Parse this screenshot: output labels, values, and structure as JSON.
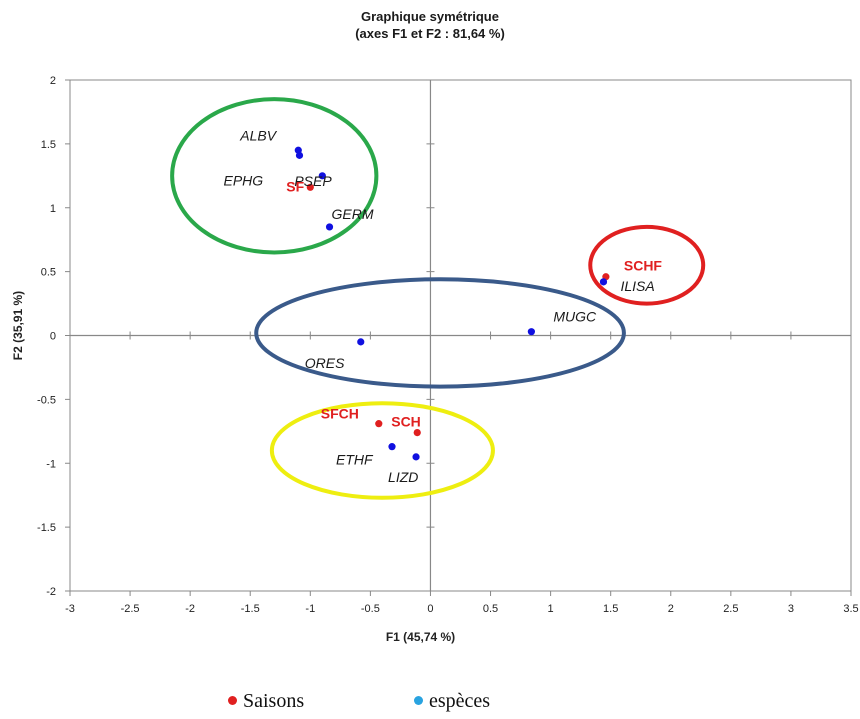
{
  "chart_data": {
    "type": "scatter",
    "title": "Graphique symétrique",
    "subtitle": "(axes F1 et F2 : 81,64 %)",
    "xlabel": "F1 (45,74 %)",
    "ylabel": "F2 (35,91 %)",
    "xlim": [
      -3,
      3.5
    ],
    "ylim": [
      -2,
      2
    ],
    "xticks": [
      -3,
      -2.5,
      -2,
      -1.5,
      -1,
      -0.5,
      0,
      0.5,
      1,
      1.5,
      2,
      2.5,
      3,
      3.5
    ],
    "yticks": [
      -2,
      -1.5,
      -1,
      -0.5,
      0,
      0.5,
      1,
      1.5,
      2
    ],
    "xtick_labels": [
      "-3",
      "-2.5",
      "-2",
      "-1.5",
      "-1",
      "-0.5",
      "0",
      "0.5",
      "1",
      "1.5",
      "2",
      "2.5",
      "3",
      "3.5"
    ],
    "ytick_labels": [
      "-2",
      "-1.5",
      "-1",
      "-0.5",
      "0",
      "0.5",
      "1",
      "1.5",
      "2"
    ],
    "grid": false,
    "series": [
      {
        "name": "Saisons",
        "color": "#e02020",
        "points": [
          {
            "label": "SF",
            "x": -1.0,
            "y": 1.16
          },
          {
            "label": "SCHF",
            "x": 1.46,
            "y": 0.46
          },
          {
            "label": "SFCH",
            "x": -0.43,
            "y": -0.69
          },
          {
            "label": "SCH",
            "x": -0.11,
            "y": -0.76
          }
        ]
      },
      {
        "name": "espèces",
        "color": "#1010e0",
        "points": [
          {
            "label": "ALBV",
            "x": -1.1,
            "y": 1.45
          },
          {
            "label": "PSEP",
            "x": -0.9,
            "y": 1.25
          },
          {
            "label": "EPHG",
            "x": -1.09,
            "y": 1.41
          },
          {
            "label": "GERM",
            "x": -0.84,
            "y": 0.85
          },
          {
            "label": "ILISA",
            "x": 1.44,
            "y": 0.42
          },
          {
            "label": "MUGC",
            "x": 0.84,
            "y": 0.03
          },
          {
            "label": "ORES",
            "x": -0.58,
            "y": -0.05
          },
          {
            "label": "ETHF",
            "x": -0.32,
            "y": -0.87
          },
          {
            "label": "LIZD",
            "x": -0.12,
            "y": -0.95
          }
        ]
      }
    ],
    "groups": [
      {
        "color": "#2aa84a",
        "center": [
          -1.3,
          1.25
        ],
        "radii": [
          0.85,
          0.6
        ]
      },
      {
        "color": "#e02020",
        "center": [
          1.8,
          0.55
        ],
        "radii": [
          0.47,
          0.3
        ]
      },
      {
        "color": "#3a5a8a",
        "center": [
          0.08,
          0.02
        ],
        "radii": [
          1.53,
          0.42
        ]
      },
      {
        "color": "#eeee10",
        "center": [
          -0.4,
          -0.9
        ],
        "radii": [
          0.92,
          0.37
        ]
      }
    ],
    "legend": {
      "position": "bottom",
      "items": [
        {
          "label": "Saisons",
          "color": "#e02020"
        },
        {
          "label": "espèces",
          "color": "#29a3e0"
        }
      ]
    }
  }
}
